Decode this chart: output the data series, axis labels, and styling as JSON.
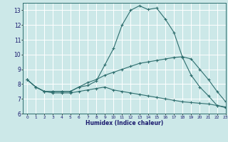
{
  "xlabel": "Humidex (Indice chaleur)",
  "xlim": [
    -0.5,
    23
  ],
  "ylim": [
    6,
    13.5
  ],
  "yticks": [
    6,
    7,
    8,
    9,
    10,
    11,
    12,
    13
  ],
  "xticks": [
    0,
    1,
    2,
    3,
    4,
    5,
    6,
    7,
    8,
    9,
    10,
    11,
    12,
    13,
    14,
    15,
    16,
    17,
    18,
    19,
    20,
    21,
    22,
    23
  ],
  "bg_color": "#cce8e8",
  "grid_color": "#b0d4d4",
  "line_color": "#2e6e6e",
  "curve1_x": [
    0,
    1,
    2,
    3,
    4,
    5,
    6,
    7,
    8,
    9,
    10,
    11,
    12,
    13,
    14,
    15,
    16,
    17,
    18,
    19,
    20,
    21,
    22,
    23
  ],
  "curve1_y": [
    8.3,
    7.8,
    7.5,
    7.5,
    7.5,
    7.5,
    7.8,
    7.9,
    8.2,
    9.3,
    10.4,
    12.0,
    13.0,
    13.3,
    13.05,
    13.15,
    12.4,
    11.5,
    9.8,
    8.6,
    7.8,
    7.2,
    6.55,
    6.4
  ],
  "curve2_x": [
    0,
    1,
    2,
    3,
    4,
    5,
    6,
    7,
    8,
    9,
    10,
    11,
    12,
    13,
    14,
    15,
    16,
    17,
    18,
    19,
    20,
    21,
    22,
    23
  ],
  "curve2_y": [
    8.3,
    7.8,
    7.5,
    7.5,
    7.5,
    7.5,
    7.8,
    8.1,
    8.3,
    8.6,
    8.8,
    9.0,
    9.2,
    9.4,
    9.5,
    9.6,
    9.7,
    9.8,
    9.85,
    9.7,
    9.0,
    8.3,
    7.5,
    6.8
  ],
  "curve3_x": [
    0,
    1,
    2,
    3,
    4,
    5,
    6,
    7,
    8,
    9,
    10,
    11,
    12,
    13,
    14,
    15,
    16,
    17,
    18,
    19,
    20,
    21,
    22,
    23
  ],
  "curve3_y": [
    8.3,
    7.8,
    7.5,
    7.4,
    7.4,
    7.4,
    7.5,
    7.6,
    7.7,
    7.8,
    7.6,
    7.5,
    7.4,
    7.3,
    7.2,
    7.1,
    7.0,
    6.9,
    6.8,
    6.75,
    6.7,
    6.65,
    6.55,
    6.45
  ]
}
